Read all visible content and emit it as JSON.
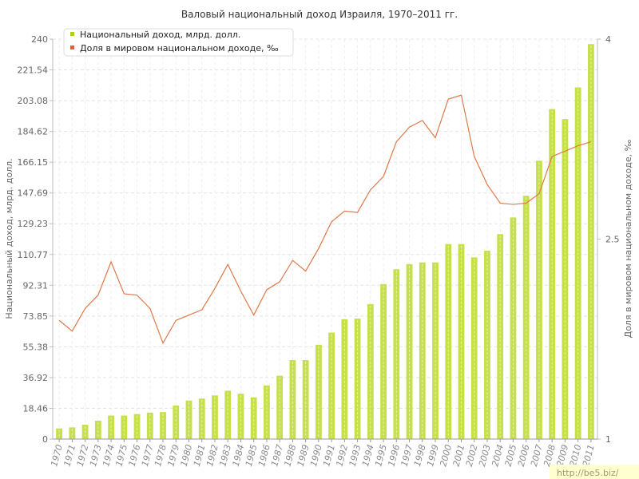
{
  "chart_data": {
    "type": "bar",
    "title": "Валовый национальный доход Израиля, 1970–2011 гг.",
    "categories": [
      "1970",
      "1971",
      "1972",
      "1973",
      "1974",
      "1975",
      "1976",
      "1977",
      "1978",
      "1979",
      "1980",
      "1981",
      "1982",
      "1983",
      "1984",
      "1985",
      "1986",
      "1987",
      "1988",
      "1989",
      "1990",
      "1991",
      "1992",
      "1993",
      "1994",
      "1995",
      "1996",
      "1997",
      "1998",
      "1999",
      "2000",
      "2001",
      "2002",
      "2003",
      "2004",
      "2005",
      "2006",
      "2007",
      "2008",
      "2009",
      "2010",
      "2011"
    ],
    "series": [
      {
        "name": "Национальный доход, млрд. долл.",
        "type": "bar",
        "axis": "left",
        "color": "#c5e04a",
        "values": [
          6.4,
          7.0,
          8.6,
          11.0,
          14.1,
          14.1,
          15.0,
          15.9,
          16.2,
          20.1,
          23.1,
          24.3,
          26.2,
          29.0,
          27.2,
          25.0,
          32.2,
          38.0,
          47.4,
          47.4,
          56.6,
          63.9,
          71.9,
          72.3,
          81.0,
          93.0,
          101.9,
          105.0,
          106.0,
          106.0,
          117.0,
          117.0,
          109.0,
          113.0,
          123.0,
          133.0,
          146.0,
          167.0,
          198.0,
          192.0,
          211.0,
          237.0
        ]
      },
      {
        "name": "Доля в мировом национальном доходе, ‰",
        "type": "line",
        "axis": "right",
        "color": "#e07848",
        "values": [
          1.89,
          1.81,
          1.98,
          2.08,
          2.33,
          2.09,
          2.08,
          1.98,
          1.72,
          1.89,
          1.93,
          1.97,
          2.13,
          2.31,
          2.11,
          1.93,
          2.12,
          2.18,
          2.34,
          2.26,
          2.43,
          2.63,
          2.71,
          2.7,
          2.87,
          2.97,
          3.23,
          3.34,
          3.39,
          3.26,
          3.55,
          3.58,
          3.12,
          2.91,
          2.77,
          2.76,
          2.77,
          2.84,
          3.12,
          3.16,
          3.2,
          3.23
        ]
      }
    ],
    "ylabel": "Национальный доход, млрд. долл.",
    "ylabel_right": "Доля в мировом национальном доходе, ‰",
    "ylim": [
      0,
      240
    ],
    "ylim_right": [
      1,
      4
    ],
    "yticks": [
      "0",
      "18.46",
      "36.92",
      "55.38",
      "73.85",
      "92.31",
      "110.77",
      "129.23",
      "147.69",
      "166.15",
      "184.62",
      "203.08",
      "221.54",
      "240"
    ],
    "yticks_right": [
      "1",
      "2.5",
      "4"
    ],
    "grid": true,
    "legend": "top-left"
  },
  "watermark": "http://be5.biz/"
}
